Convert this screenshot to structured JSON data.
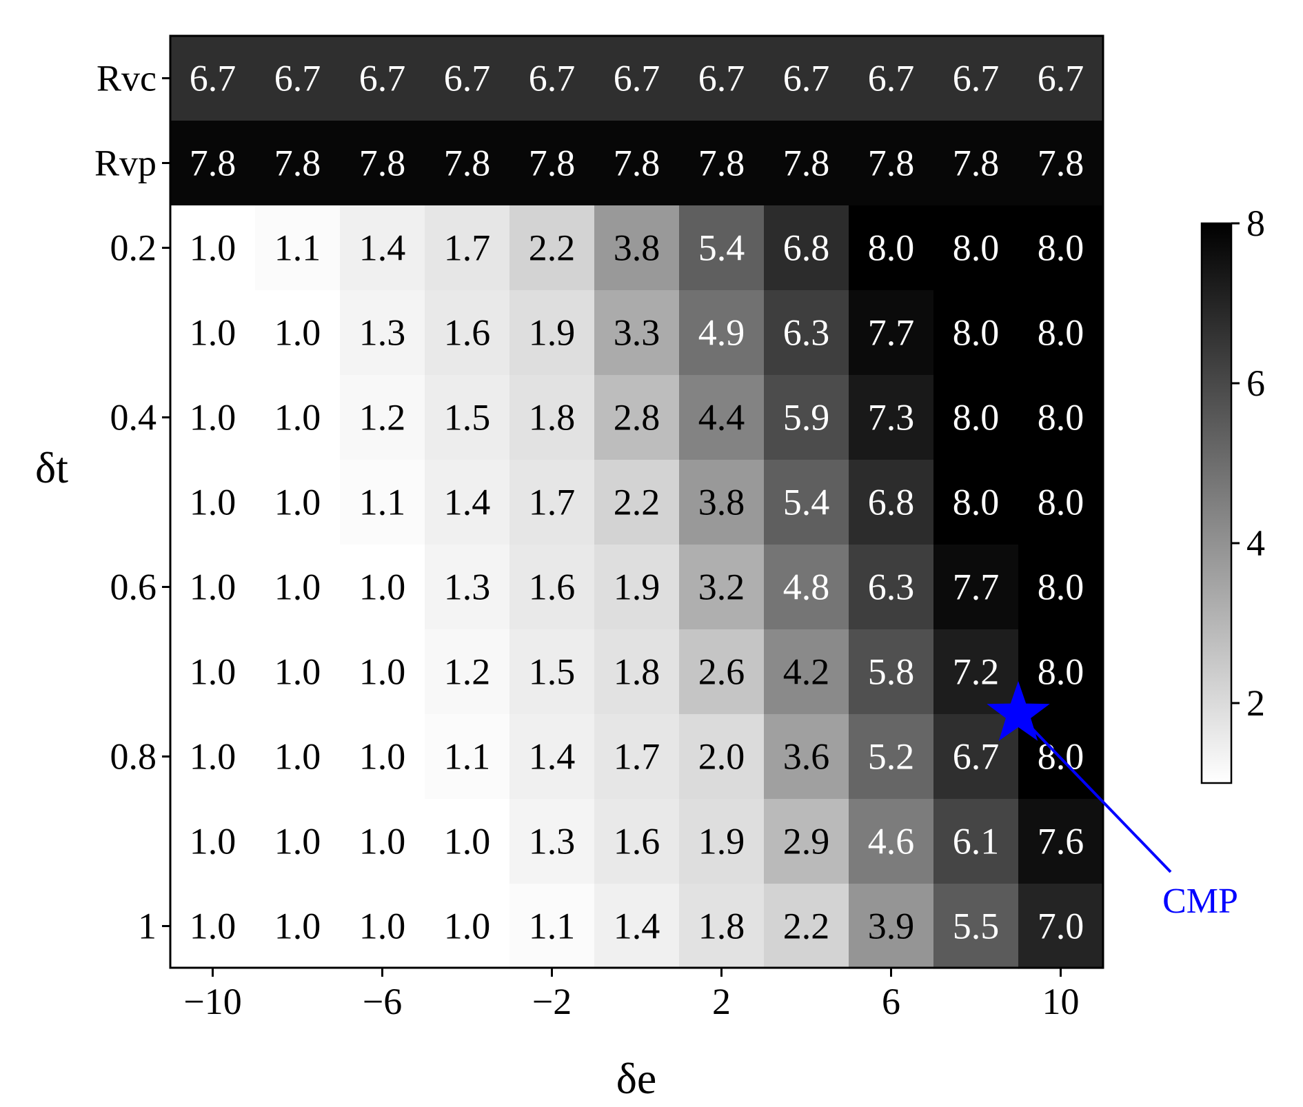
{
  "chart_data": {
    "type": "heatmap",
    "xlabel": "δe",
    "ylabel": "δt",
    "x_categories": [
      -10,
      -8,
      -6,
      -4,
      -2,
      0,
      2,
      4,
      6,
      8,
      10
    ],
    "x_tick_labels": [
      "−10",
      "−6",
      "−2",
      "2",
      "6",
      "10"
    ],
    "x_tick_values": [
      -10,
      -6,
      -2,
      2,
      6,
      10
    ],
    "rows": [
      "Rvc",
      "Rvp",
      "0.2",
      "0.3",
      "0.4",
      "0.5",
      "0.6",
      "0.7",
      "0.8",
      "0.9",
      "1"
    ],
    "y_tick_labels": [
      "Rvc",
      "Rvp",
      "0.2",
      "0.4",
      "0.6",
      "0.8",
      "1"
    ],
    "values": [
      [
        6.7,
        6.7,
        6.7,
        6.7,
        6.7,
        6.7,
        6.7,
        6.7,
        6.7,
        6.7,
        6.7
      ],
      [
        7.8,
        7.8,
        7.8,
        7.8,
        7.8,
        7.8,
        7.8,
        7.8,
        7.8,
        7.8,
        7.8
      ],
      [
        1.0,
        1.1,
        1.4,
        1.7,
        2.2,
        3.8,
        5.4,
        6.8,
        8.0,
        8.0,
        8.0
      ],
      [
        1.0,
        1.0,
        1.3,
        1.6,
        1.9,
        3.3,
        4.9,
        6.3,
        7.7,
        8.0,
        8.0
      ],
      [
        1.0,
        1.0,
        1.2,
        1.5,
        1.8,
        2.8,
        4.4,
        5.9,
        7.3,
        8.0,
        8.0
      ],
      [
        1.0,
        1.0,
        1.1,
        1.4,
        1.7,
        2.2,
        3.8,
        5.4,
        6.8,
        8.0,
        8.0
      ],
      [
        1.0,
        1.0,
        1.0,
        1.3,
        1.6,
        1.9,
        3.2,
        4.8,
        6.3,
        7.7,
        8.0
      ],
      [
        1.0,
        1.0,
        1.0,
        1.2,
        1.5,
        1.8,
        2.6,
        4.2,
        5.8,
        7.2,
        8.0
      ],
      [
        1.0,
        1.0,
        1.0,
        1.1,
        1.4,
        1.7,
        2.0,
        3.6,
        5.2,
        6.7,
        8.0
      ],
      [
        1.0,
        1.0,
        1.0,
        1.0,
        1.3,
        1.6,
        1.9,
        2.9,
        4.6,
        6.1,
        7.6
      ],
      [
        1.0,
        1.0,
        1.0,
        1.0,
        1.1,
        1.4,
        1.8,
        2.2,
        3.9,
        5.5,
        7.0
      ]
    ],
    "colormap": "gray_r",
    "colorbar": {
      "range": [
        1,
        8
      ],
      "tick_values": [
        2,
        4,
        6,
        8
      ],
      "tick_labels": [
        "2",
        "4",
        "6",
        "8"
      ]
    },
    "annotation": {
      "label": "CMP",
      "marker": "star",
      "color": "#0000ff",
      "x": 9,
      "y": 0.75
    }
  }
}
